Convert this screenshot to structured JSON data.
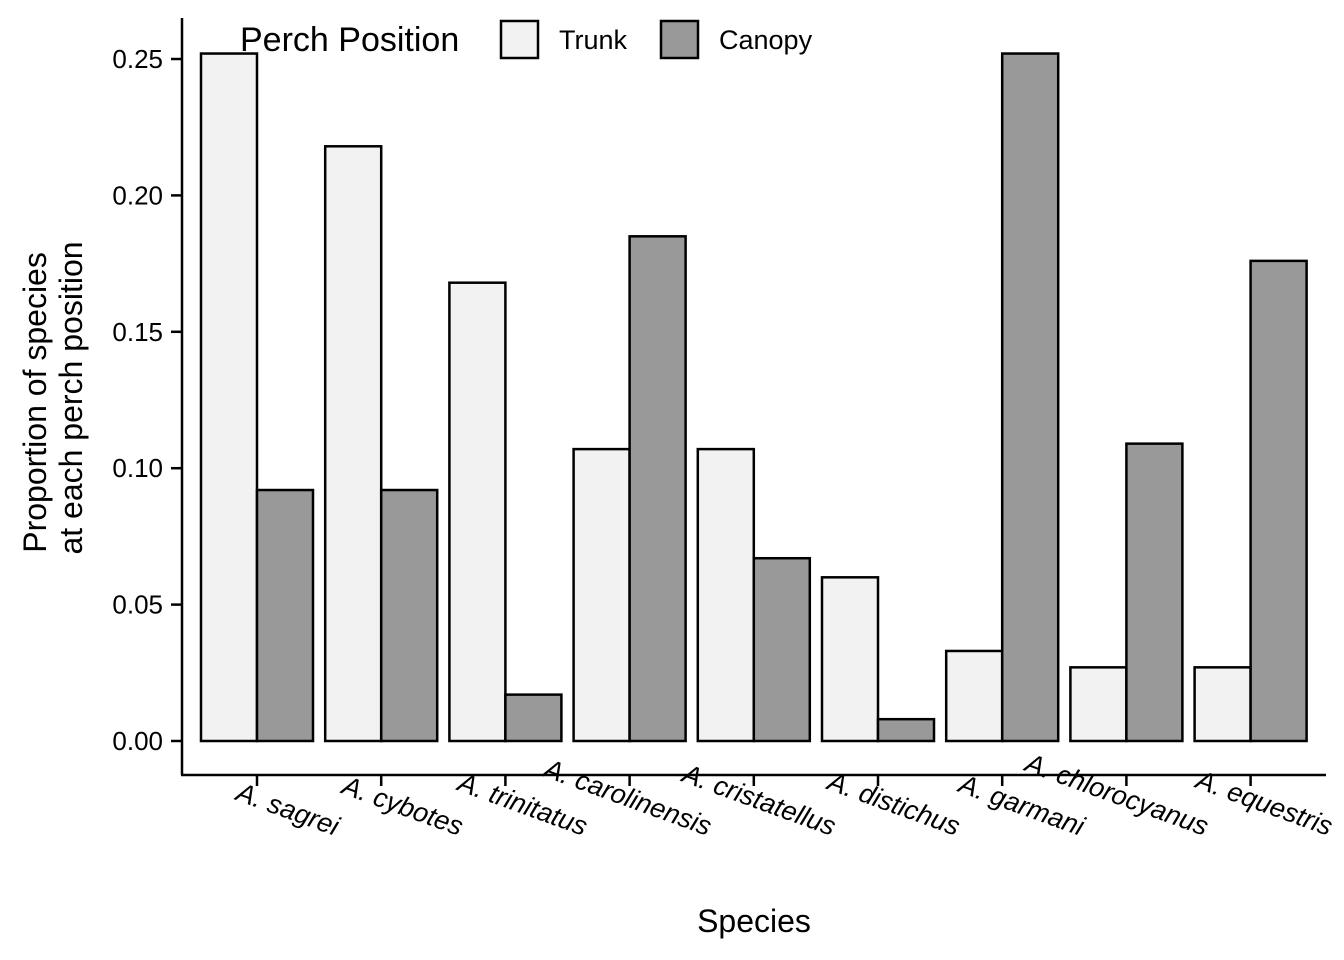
{
  "chart_data": {
    "type": "bar",
    "xlabel": "Species",
    "ylabel_lines": [
      "Proportion of species",
      "at each perch position"
    ],
    "ylim": [
      0,
      0.25
    ],
    "yticks": [
      "0.00",
      "0.05",
      "0.10",
      "0.15",
      "0.20",
      "0.25"
    ],
    "ytick_values": [
      0,
      0.05,
      0.1,
      0.15,
      0.2,
      0.25
    ],
    "categories": [
      "A. sagrei",
      "A. cybotes",
      "A. trinitatus",
      "A. carolinensis",
      "A. cristatellus",
      "A. distichus",
      "A. garmani",
      "A. chlorocyanus",
      "A. equestris"
    ],
    "legend": {
      "title": "Perch Position",
      "placement": "top-left"
    },
    "series": [
      {
        "name": "Trunk",
        "color": "#f2f2f2",
        "values": [
          0.252,
          0.218,
          0.168,
          0.107,
          0.107,
          0.06,
          0.033,
          0.027,
          0.027
        ]
      },
      {
        "name": "Canopy",
        "color": "#999999",
        "values": [
          0.092,
          0.092,
          0.017,
          0.185,
          0.067,
          0.008,
          0.252,
          0.109,
          0.176
        ]
      }
    ],
    "grid": false
  }
}
